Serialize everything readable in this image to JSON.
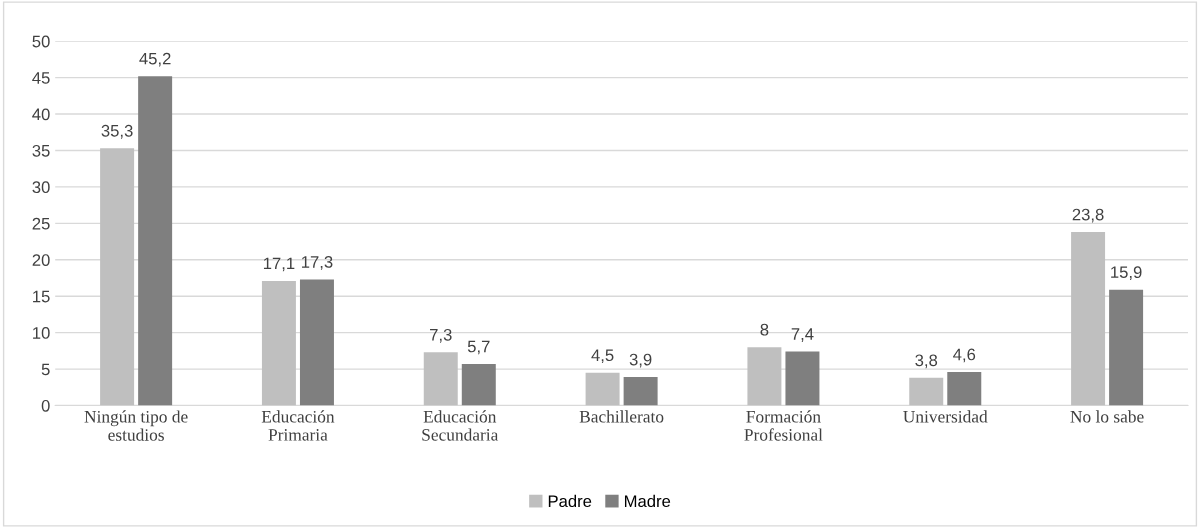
{
  "chart_data": {
    "type": "bar",
    "categories": [
      "Ningún tipo de\nestudios",
      "Educación\nPrimaria",
      "Educación\nSecundaria",
      "Bachillerato",
      "Formación\nProfesional",
      "Universidad",
      "No lo sabe"
    ],
    "series": [
      {
        "name": "Padre",
        "color": "#bfbfbf",
        "values": [
          35.3,
          17.1,
          7.3,
          4.5,
          8,
          3.8,
          23.8
        ],
        "value_labels": [
          "35,3",
          "17,1",
          "7,3",
          "4,5",
          "8",
          "3,8",
          "23,8"
        ]
      },
      {
        "name": "Madre",
        "color": "#7f7f7f",
        "values": [
          45.2,
          17.3,
          5.7,
          3.9,
          7.4,
          4.6,
          15.9
        ],
        "value_labels": [
          "45,2",
          "17,3",
          "5,7",
          "3,9",
          "7,4",
          "4,6",
          "15,9"
        ]
      }
    ],
    "ylim": [
      0,
      50
    ],
    "yticks": [
      0,
      5,
      10,
      15,
      20,
      25,
      30,
      35,
      40,
      45,
      50
    ],
    "grid": "y",
    "legend": "bottom"
  }
}
